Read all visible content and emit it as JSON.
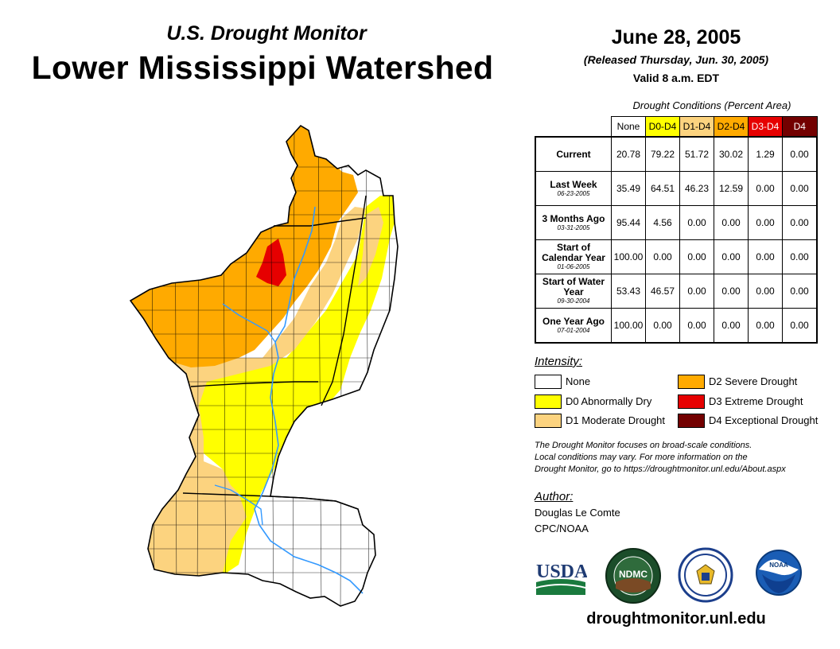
{
  "header": {
    "subtitle": "U.S. Drought Monitor",
    "title": "Lower Mississippi Watershed",
    "date": "June 28, 2005",
    "released": "(Released Thursday, Jun. 30, 2005)",
    "valid": "Valid 8 a.m. EDT"
  },
  "table": {
    "caption": "Drought Conditions (Percent Area)",
    "columns": [
      "None",
      "D0-D4",
      "D1-D4",
      "D2-D4",
      "D3-D4",
      "D4"
    ],
    "rows": [
      {
        "label": "Current",
        "date": "",
        "values": [
          "20.78",
          "79.22",
          "51.72",
          "30.02",
          "1.29",
          "0.00"
        ]
      },
      {
        "label": "Last Week",
        "date": "06-23-2005",
        "values": [
          "35.49",
          "64.51",
          "46.23",
          "12.59",
          "0.00",
          "0.00"
        ]
      },
      {
        "label": "3 Months Ago",
        "date": "03-31-2005",
        "values": [
          "95.44",
          "4.56",
          "0.00",
          "0.00",
          "0.00",
          "0.00"
        ]
      },
      {
        "label": "Start of Calendar Year",
        "date": "01-06-2005",
        "values": [
          "100.00",
          "0.00",
          "0.00",
          "0.00",
          "0.00",
          "0.00"
        ]
      },
      {
        "label": "Start of Water Year",
        "date": "09-30-2004",
        "values": [
          "53.43",
          "46.57",
          "0.00",
          "0.00",
          "0.00",
          "0.00"
        ]
      },
      {
        "label": "One Year Ago",
        "date": "07-01-2004",
        "values": [
          "100.00",
          "0.00",
          "0.00",
          "0.00",
          "0.00",
          "0.00"
        ]
      }
    ]
  },
  "legend": {
    "title": "Intensity:",
    "items": [
      {
        "label": "None",
        "color": "#ffffff"
      },
      {
        "label": "D0 Abnormally Dry",
        "color": "#ffff00"
      },
      {
        "label": "D1 Moderate Drought",
        "color": "#fcd37f"
      },
      {
        "label": "D2 Severe Drought",
        "color": "#ffaa00"
      },
      {
        "label": "D3 Extreme Drought",
        "color": "#e60000"
      },
      {
        "label": "D4 Exceptional Drought",
        "color": "#730000"
      }
    ]
  },
  "disclaimer": {
    "line1": "The Drought Monitor focuses on broad-scale conditions.",
    "line2": "Local conditions may vary. For more information on the",
    "line3": "Drought Monitor, go to https://droughtmonitor.unl.edu/About.aspx"
  },
  "author": {
    "title": "Author:",
    "name": "Douglas Le Comte",
    "org": "CPC/NOAA"
  },
  "logos": {
    "usda": "USDA",
    "ndmc": "NDMC",
    "noaa": "NOAA"
  },
  "footer": {
    "website": "droughtmonitor.unl.edu"
  },
  "colors": {
    "none": "#ffffff",
    "d0": "#ffff00",
    "d1": "#fcd37f",
    "d2": "#ffaa00",
    "d3": "#e60000",
    "d4": "#730000",
    "river": "#3399ff"
  }
}
